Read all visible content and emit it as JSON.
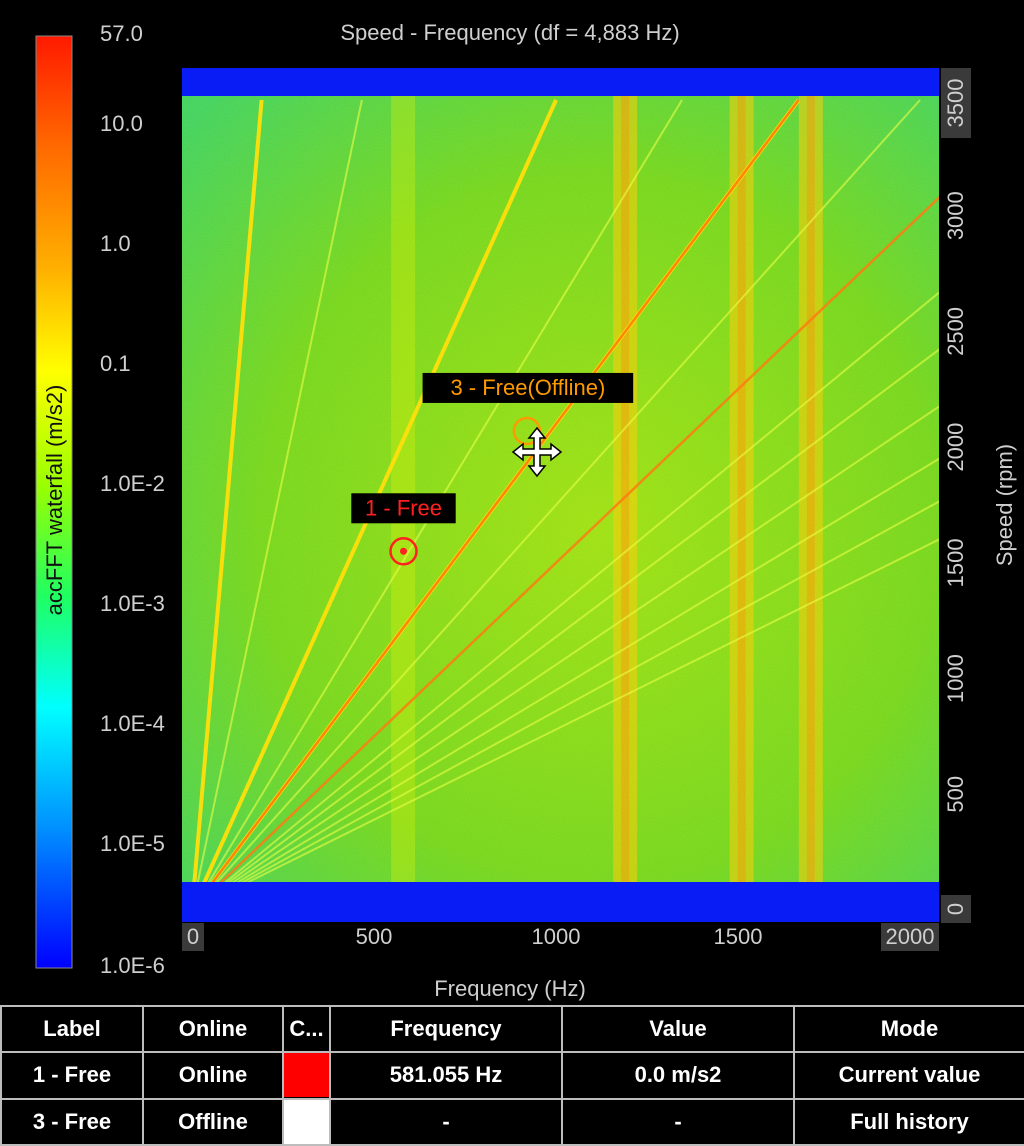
{
  "chart_data": {
    "type": "heatmap",
    "title": "Speed - Frequency (df = 4,883 Hz)",
    "xlabel": "Frequency (Hz)",
    "ylabel": "Speed (rpm)",
    "xlim": [
      0,
      2000
    ],
    "ylim": [
      0,
      3500
    ],
    "x_ticks": [
      "0",
      "500",
      "1000",
      "1500",
      "2000"
    ],
    "y_ticks": [
      "0",
      "500",
      "1000",
      "1500",
      "2000",
      "2500",
      "3000",
      "3500"
    ],
    "colorbar": {
      "label": "accFFT waterfall (m/s2)",
      "scale": "log",
      "ticks": [
        "57.0",
        "10.0",
        "1.0",
        "0.1",
        "1.0E-2",
        "1.0E-3",
        "1.0E-4",
        "1.0E-5",
        "1.0E-6"
      ],
      "colors": [
        "#ff1a00",
        "#ff8c00",
        "#ffff00",
        "#80ff00",
        "#00ffff",
        "#0080ff",
        "#0000ff"
      ]
    },
    "order_lines_rpm_per_hz": [
      18.3,
      7.5,
      3.5,
      2.6,
      2.1,
      1.75,
      1.5,
      1.3,
      1.18,
      1.06,
      0.95,
      0.86,
      0.78
    ],
    "resonance_bands_hz": [
      580,
      1190,
      1510,
      1700
    ],
    "cursors": [
      {
        "label": "1 - Free (marker)",
        "text": "1 - Free",
        "frequency_hz": 581.055,
        "speed_rpm": 1550,
        "color": "#ff2020"
      },
      {
        "label": "3 - Free (marker)",
        "text": "3 - Free(Offline)",
        "frequency_hz": 920,
        "speed_rpm": 2070,
        "color": "#ff9900"
      }
    ]
  },
  "table": {
    "headers": [
      "Label",
      "Online",
      "C...",
      "Frequency",
      "Value",
      "Mode"
    ],
    "rows": [
      {
        "label": "1 - Free",
        "online": "Online",
        "color": "#ff0000",
        "frequency": "581.055 Hz",
        "value": "0.0 m/s2",
        "mode": "Current value"
      },
      {
        "label": "3 - Free",
        "online": "Offline",
        "color": "#ffffff",
        "frequency": "-",
        "value": "-",
        "mode": "Full history"
      }
    ]
  }
}
